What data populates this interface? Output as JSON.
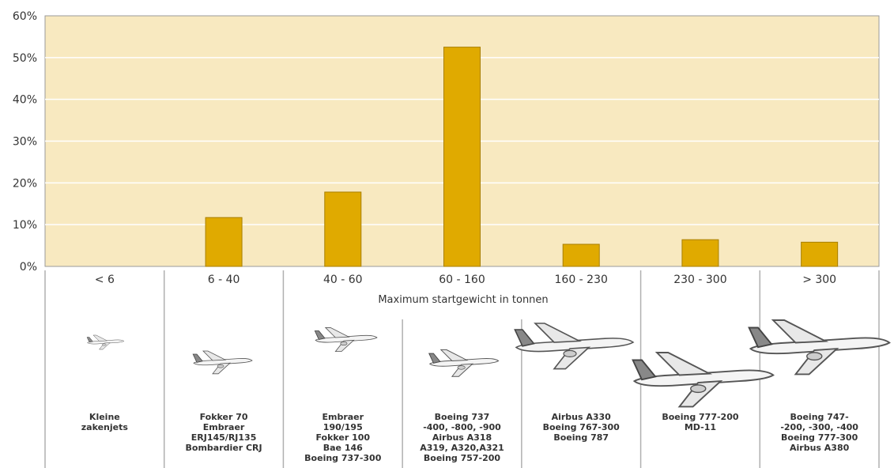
{
  "chart_data": {
    "type": "bar",
    "categories": [
      "< 6",
      "6 - 40",
      "40 - 60",
      "60 - 160",
      "160 - 230",
      "230 - 300",
      "> 300"
    ],
    "values": [
      0,
      11.7,
      17.8,
      52.5,
      5.3,
      6.4,
      5.8
    ],
    "xlabel": "Maximum startgewicht in tonnen",
    "ylabel": "",
    "ylim": [
      0,
      60
    ],
    "yticks": [
      "0%",
      "10%",
      "20%",
      "30%",
      "40%",
      "50%",
      "60%"
    ],
    "grid": true,
    "bar_color": "#e0aa00",
    "plot_background": "#f8e9c0"
  },
  "aircraft_groups": [
    {
      "category": "< 6",
      "models": "Kleine\nzakenjets"
    },
    {
      "category": "6 - 40",
      "models": "Fokker 70\nEmbraer\nERJ145/RJ135\nBombardier CRJ"
    },
    {
      "category": "40 - 60",
      "models": "Embraer\n190/195\nFokker 100\nBae 146\nBoeing 737-300"
    },
    {
      "category": "60 - 160",
      "models": "Boeing 737\n-400, -800, -900\nAirbus A318\nA319, A320,A321\nBoeing 757-200"
    },
    {
      "category": "160 - 230",
      "models": "Airbus A330\nBoeing 767-300\nBoeing 787"
    },
    {
      "category": "230 - 300",
      "models": "Boeing 777-200\nMD-11"
    },
    {
      "category": "> 300",
      "models": "Boeing 747-\n-200, -300, -400\nBoeing 777-300\nAirbus A380"
    }
  ],
  "icons": [
    "airplane-icon"
  ]
}
